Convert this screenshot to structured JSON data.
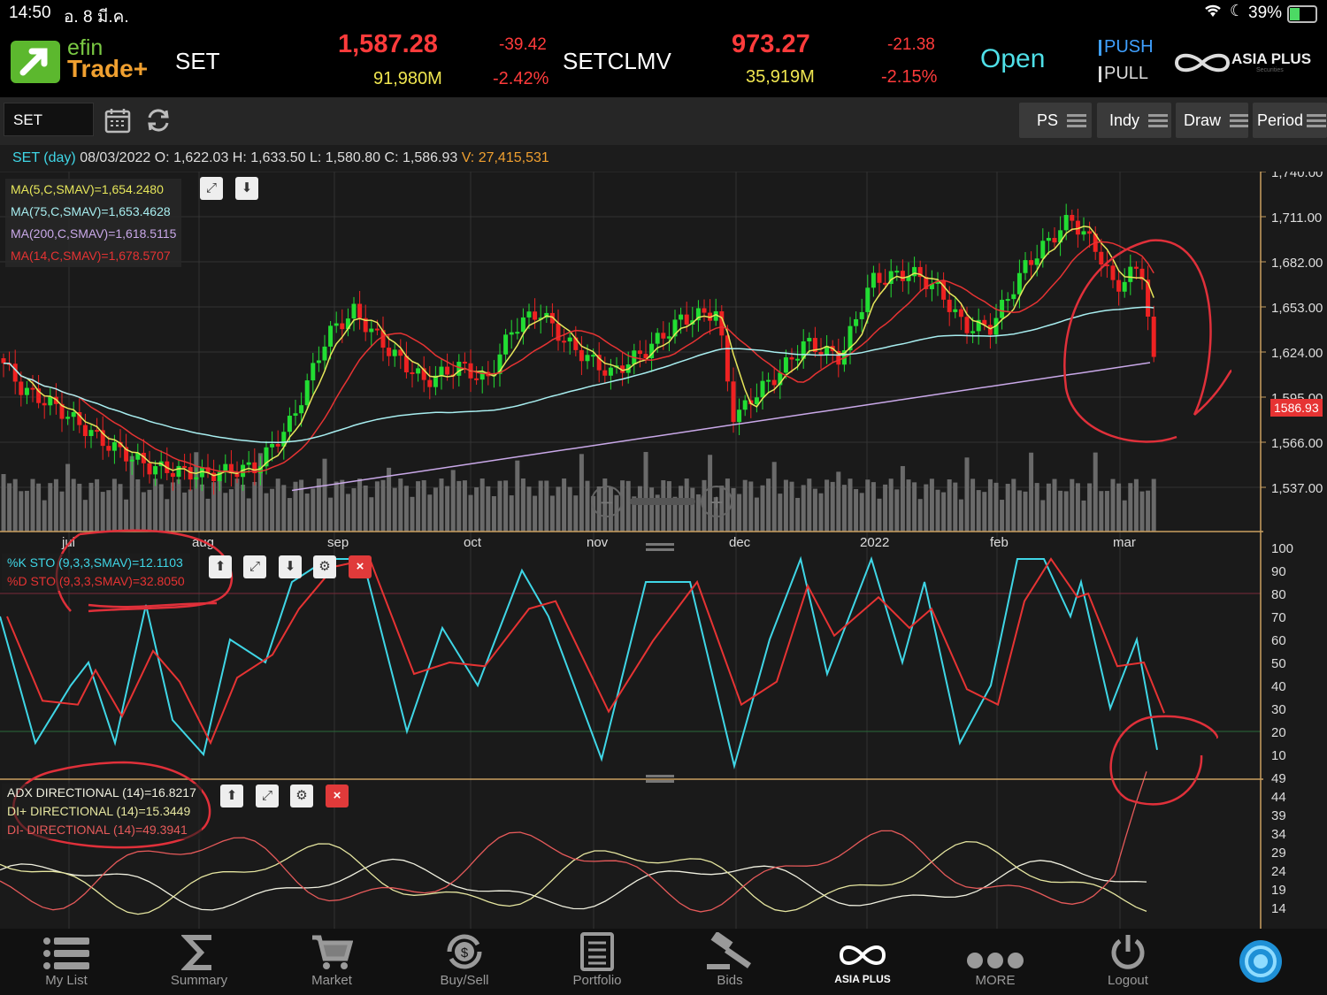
{
  "status_bar": {
    "time": "14:50",
    "date": "อ. 8 มี.ค.",
    "battery": "39%"
  },
  "header": {
    "logo_line1": "efin",
    "logo_line2": "Trade+",
    "index1": {
      "name": "SET",
      "value": "1,587.28",
      "change": "-39.42",
      "volume": "91,980M",
      "percent": "-2.42%"
    },
    "index2": {
      "name": "SETCLMV",
      "value": "973.27",
      "change": "-21.38",
      "volume": "35,919M",
      "percent": "-2.15%"
    },
    "market_status": "Open",
    "push_label": "PUSH",
    "pull_label": "PULL",
    "broker": "ASIA PLUS",
    "broker_sub": "Securities"
  },
  "toolbar": {
    "symbol": "SET",
    "buttons": [
      {
        "label": "PS"
      },
      {
        "label": "Indy"
      },
      {
        "label": "Draw"
      },
      {
        "label": "Period"
      }
    ]
  },
  "info_line": {
    "symbol_period": "SET (day)",
    "date": "08/03/2022",
    "o_label": "O:",
    "o": "1,622.03",
    "h_label": "H:",
    "h": "1,633.50",
    "l_label": "L:",
    "l": "1,580.80",
    "c_label": "C:",
    "c": "1,586.93",
    "v_label": "V:",
    "v": "27,415,531"
  },
  "price_panel": {
    "legend": [
      {
        "text": "MA(5,C,SMAV)=1,654.2480",
        "color": "#e6e65a"
      },
      {
        "text": "MA(75,C,SMAV)=1,653.4628",
        "color": "#a8eef0"
      },
      {
        "text": "MA(200,C,SMAV)=1,618.5115",
        "color": "#c9a8e8"
      },
      {
        "text": "MA(14,C,SMAV)=1,678.5707",
        "color": "#e63333"
      }
    ],
    "y_ticks": [
      "1,740.00",
      "1,711.00",
      "1,682.00",
      "1,653.00",
      "1,624.00",
      "1,595.00",
      "1,566.00",
      "1,537.00"
    ],
    "last_price_tag": "1586.93",
    "x_labels": [
      "jul",
      "aug",
      "sep",
      "oct",
      "nov",
      "dec",
      "2022",
      "feb",
      "mar"
    ]
  },
  "sto_panel": {
    "legend": [
      {
        "text": "%K STO (9,3,3,SMAV)=12.1103",
        "color": "#3fd6e6"
      },
      {
        "text": "%D STO (9,3,3,SMAV)=32.8050",
        "color": "#e63333"
      }
    ],
    "y_ticks": [
      "100",
      "90",
      "80",
      "70",
      "60",
      "50",
      "40",
      "30",
      "20",
      "10"
    ]
  },
  "adx_panel": {
    "legend": [
      {
        "text": "ADX DIRECTIONAL (14)=16.8217",
        "color": "#f0f0e0"
      },
      {
        "text": "DI+ DIRECTIONAL (14)=15.3449",
        "color": "#e6e6a0"
      },
      {
        "text": "DI- DIRECTIONAL (14)=49.3941",
        "color": "#e65a5a"
      }
    ],
    "y_ticks": [
      "49",
      "44",
      "39",
      "34",
      "29",
      "24",
      "19",
      "14"
    ]
  },
  "tabs": [
    {
      "label": "My List",
      "icon": "list-icon"
    },
    {
      "label": "Summary",
      "icon": "sigma-icon"
    },
    {
      "label": "Market",
      "icon": "cart-icon"
    },
    {
      "label": "Buy/Sell",
      "icon": "buysell-icon"
    },
    {
      "label": "Portfolio",
      "icon": "portfolio-icon"
    },
    {
      "label": "Bids",
      "icon": "gavel-icon"
    },
    {
      "label": "ASIA PLUS",
      "icon": "asiaplus-icon"
    },
    {
      "label": "MORE",
      "icon": "more-icon"
    },
    {
      "label": "Logout",
      "icon": "power-icon"
    }
  ]
}
